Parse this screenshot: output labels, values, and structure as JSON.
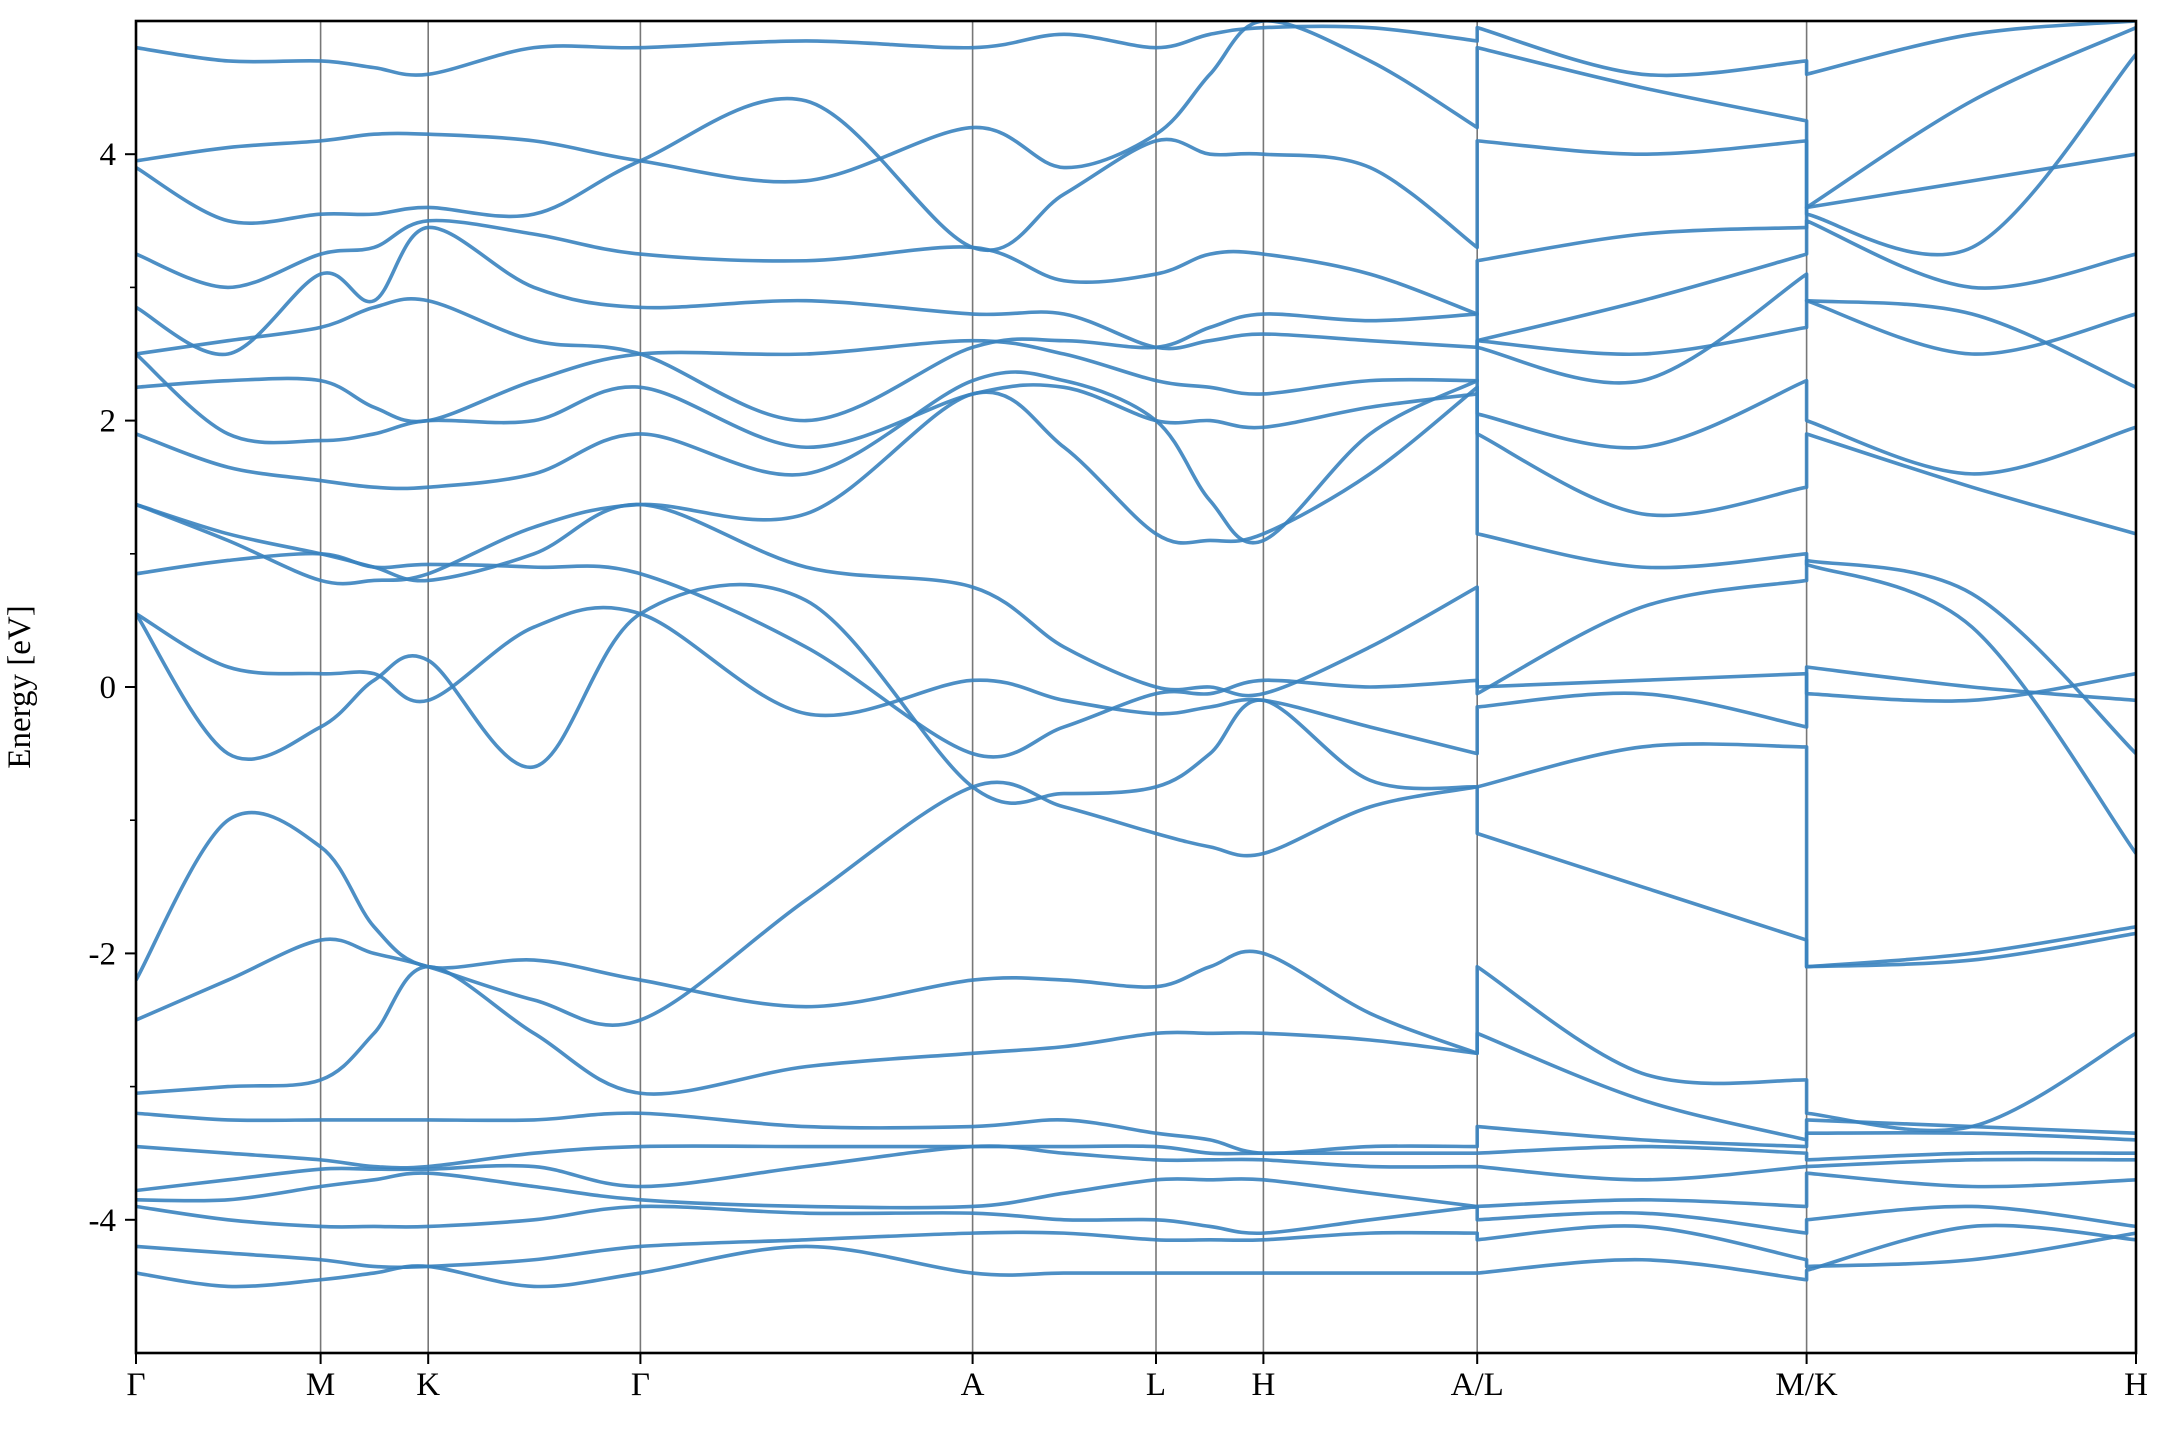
{
  "chart_data": {
    "type": "line",
    "ylabel": "Energy [eV]",
    "color": "#3a83bf",
    "xlim": [
      0,
      10
    ],
    "ylim": [
      -5,
      5
    ],
    "xticks": [
      {
        "value": 0,
        "label": "Γ"
      },
      {
        "value": 0.923,
        "label": "M"
      },
      {
        "value": 1.461,
        "label": "K"
      },
      {
        "value": 2.522,
        "label": "Γ"
      },
      {
        "value": 4.183,
        "label": "A"
      },
      {
        "value": 5.1,
        "label": "L"
      },
      {
        "value": 5.637,
        "label": "H"
      },
      {
        "value": 6.706,
        "label": "A/L"
      },
      {
        "value": 8.353,
        "label": "M/K"
      },
      {
        "value": 10,
        "label": "H"
      }
    ],
    "yticks": [
      -4,
      -2,
      0,
      2,
      4
    ],
    "yminorticks": [
      -3,
      -1,
      1,
      3
    ],
    "grid": "x",
    "x": [
      0,
      0.46,
      0.923,
      1.19,
      1.461,
      1.99,
      2.522,
      3.35,
      4.183,
      4.64,
      5.1,
      5.37,
      5.637,
      6.17,
      6.706,
      6.706,
      7.53,
      8.353,
      8.353,
      9.18,
      10
    ],
    "series": [
      {
        "values": [
          -4.4,
          -4.5,
          -4.45,
          -4.4,
          -4.35,
          -4.5,
          -4.4,
          -4.2,
          -4.4,
          -4.4,
          -4.4,
          -4.4,
          -4.4,
          -4.4,
          -4.4,
          -4.4,
          -4.3,
          -4.45,
          -4.38,
          -4.05,
          -4.15
        ]
      },
      {
        "values": [
          -4.2,
          -4.25,
          -4.3,
          -4.35,
          -4.35,
          -4.3,
          -4.2,
          -4.15,
          -4.1,
          -4.1,
          -4.15,
          -4.15,
          -4.15,
          -4.1,
          -4.1,
          -4.15,
          -4.05,
          -4.3,
          -4.35,
          -4.3,
          -4.1
        ]
      },
      {
        "values": [
          -3.9,
          -4.0,
          -4.05,
          -4.05,
          -4.05,
          -4.0,
          -3.9,
          -3.95,
          -3.95,
          -4.0,
          -4.0,
          -4.05,
          -4.1,
          -4.0,
          -3.9,
          -4.0,
          -3.95,
          -4.1,
          -4.0,
          -3.9,
          -4.05
        ]
      },
      {
        "values": [
          -3.85,
          -3.85,
          -3.75,
          -3.7,
          -3.65,
          -3.75,
          -3.85,
          -3.9,
          -3.9,
          -3.8,
          -3.7,
          -3.7,
          -3.7,
          -3.8,
          -3.9,
          -3.9,
          -3.85,
          -3.9,
          -3.65,
          -3.75,
          -3.7
        ]
      },
      {
        "values": [
          -3.78,
          -3.7,
          -3.62,
          -3.62,
          -3.62,
          -3.6,
          -3.75,
          -3.6,
          -3.45,
          -3.5,
          -3.55,
          -3.55,
          -3.55,
          -3.6,
          -3.6,
          -3.6,
          -3.7,
          -3.6,
          -3.6,
          -3.55,
          -3.55
        ]
      },
      {
        "values": [
          -3.45,
          -3.5,
          -3.55,
          -3.6,
          -3.6,
          -3.5,
          -3.45,
          -3.45,
          -3.45,
          -3.45,
          -3.45,
          -3.5,
          -3.5,
          -3.5,
          -3.5,
          -3.5,
          -3.45,
          -3.5,
          -3.55,
          -3.5,
          -3.5
        ]
      },
      {
        "values": [
          -3.2,
          -3.25,
          -3.25,
          -3.25,
          -3.25,
          -3.25,
          -3.2,
          -3.3,
          -3.3,
          -3.25,
          -3.35,
          -3.4,
          -3.5,
          -3.45,
          -3.45,
          -3.3,
          -3.4,
          -3.45,
          -3.25,
          -3.3,
          -3.35
        ]
      },
      {
        "values": [
          -3.05,
          -3.0,
          -2.95,
          -2.6,
          -2.1,
          -2.6,
          -3.05,
          -2.85,
          -2.75,
          -2.7,
          -2.6,
          -2.6,
          -2.6,
          -2.65,
          -2.75,
          -2.6,
          -3.1,
          -3.4,
          -3.35,
          -3.35,
          -3.4
        ]
      },
      {
        "values": [
          -2.5,
          -2.2,
          -1.9,
          -2.0,
          -2.1,
          -2.35,
          -2.5,
          -1.6,
          -0.75,
          -0.9,
          -1.1,
          -1.2,
          -1.25,
          -0.9,
          -0.75,
          -1.1,
          -1.5,
          -1.9,
          -2.1,
          -2.05,
          -1.85
        ]
      },
      {
        "values": [
          -2.2,
          -1.0,
          -1.2,
          -1.8,
          -2.1,
          -2.05,
          -2.2,
          -2.4,
          -2.2,
          -2.2,
          -2.25,
          -2.1,
          -2.0,
          -2.45,
          -2.75,
          -2.1,
          -2.9,
          -2.95,
          -3.2,
          -3.3,
          -2.6
        ]
      },
      {
        "values": [
          0.55,
          -0.5,
          -0.3,
          0.05,
          0.2,
          -0.6,
          0.55,
          0.65,
          -0.75,
          -0.8,
          -0.75,
          -0.5,
          -0.1,
          -0.7,
          -0.75,
          -0.75,
          -0.45,
          -0.45,
          -2.1,
          -2.0,
          -1.8
        ]
      },
      {
        "values": [
          0.55,
          0.15,
          0.1,
          0.1,
          -0.1,
          0.45,
          0.55,
          -0.2,
          0.05,
          -0.1,
          -0.2,
          -0.15,
          -0.1,
          -0.3,
          -0.5,
          -0.15,
          -0.05,
          -0.3,
          0.15,
          0.0,
          -0.1
        ]
      },
      {
        "values": [
          0.85,
          0.95,
          1.0,
          0.9,
          0.92,
          0.9,
          0.85,
          0.3,
          -0.5,
          -0.3,
          -0.05,
          -0.05,
          0.05,
          0.0,
          0.05,
          0.0,
          0.05,
          0.1,
          -0.05,
          -0.1,
          0.1
        ]
      },
      {
        "values": [
          1.37,
          1.15,
          1.0,
          0.9,
          0.8,
          1.0,
          1.37,
          0.9,
          0.75,
          0.3,
          0.0,
          0.0,
          -0.05,
          0.3,
          0.75,
          -0.05,
          0.6,
          0.8,
          0.95,
          0.7,
          -0.5
        ]
      },
      {
        "values": [
          1.37,
          1.1,
          0.8,
          0.8,
          0.85,
          1.2,
          1.37,
          1.3,
          2.2,
          1.8,
          1.15,
          1.1,
          1.15,
          1.6,
          2.25,
          1.15,
          0.9,
          1.0,
          0.92,
          0.45,
          -1.25
        ]
      },
      {
        "values": [
          1.9,
          1.65,
          1.55,
          1.5,
          1.5,
          1.6,
          1.9,
          1.6,
          2.3,
          2.3,
          2.0,
          1.4,
          1.1,
          1.9,
          2.3,
          1.9,
          1.3,
          1.5,
          1.9,
          1.5,
          1.15
        ]
      },
      {
        "values": [
          2.5,
          1.9,
          1.85,
          1.9,
          2.0,
          2.0,
          2.25,
          1.8,
          2.2,
          2.25,
          2.0,
          2.0,
          1.95,
          2.1,
          2.2,
          2.05,
          1.8,
          2.3,
          2.0,
          1.6,
          1.95
        ]
      },
      {
        "values": [
          2.25,
          2.3,
          2.3,
          2.1,
          2.0,
          2.3,
          2.5,
          2.5,
          2.6,
          2.5,
          2.3,
          2.25,
          2.2,
          2.3,
          2.3,
          2.6,
          2.5,
          2.7,
          2.9,
          2.8,
          2.25
        ]
      },
      {
        "values": [
          2.5,
          2.6,
          2.7,
          2.85,
          2.9,
          2.6,
          2.5,
          2.0,
          2.55,
          2.6,
          2.55,
          2.7,
          2.8,
          2.75,
          2.8,
          2.55,
          2.3,
          3.1,
          2.9,
          2.5,
          2.8
        ]
      },
      {
        "values": [
          2.85,
          2.5,
          3.1,
          2.9,
          3.45,
          3.0,
          2.85,
          2.9,
          2.8,
          2.8,
          2.55,
          2.6,
          2.65,
          2.6,
          2.55,
          2.6,
          2.9,
          3.25,
          3.5,
          3.0,
          3.25
        ]
      },
      {
        "values": [
          3.25,
          3.0,
          3.25,
          3.3,
          3.5,
          3.4,
          3.25,
          3.2,
          3.3,
          3.05,
          3.1,
          3.25,
          3.25,
          3.1,
          2.8,
          3.2,
          3.4,
          3.45,
          3.6,
          3.8,
          4.0
        ]
      },
      {
        "values": [
          3.9,
          3.5,
          3.55,
          3.55,
          3.6,
          3.55,
          3.95,
          4.4,
          3.3,
          3.7,
          4.1,
          4.0,
          4.0,
          3.9,
          3.3,
          4.1,
          4.0,
          4.1,
          3.55,
          3.3,
          4.75
        ]
      },
      {
        "values": [
          3.95,
          4.05,
          4.1,
          4.15,
          4.15,
          4.1,
          3.95,
          3.8,
          4.2,
          3.9,
          4.15,
          4.6,
          5.0,
          4.7,
          4.2,
          4.8,
          4.5,
          4.25,
          3.6,
          4.4,
          4.95
        ]
      },
      {
        "values": [
          4.8,
          4.7,
          4.7,
          4.65,
          4.6,
          4.8,
          4.8,
          4.85,
          4.8,
          4.9,
          4.8,
          4.9,
          4.95,
          4.95,
          4.85,
          4.95,
          4.6,
          4.7,
          4.6,
          4.9,
          5.0
        ]
      }
    ]
  }
}
